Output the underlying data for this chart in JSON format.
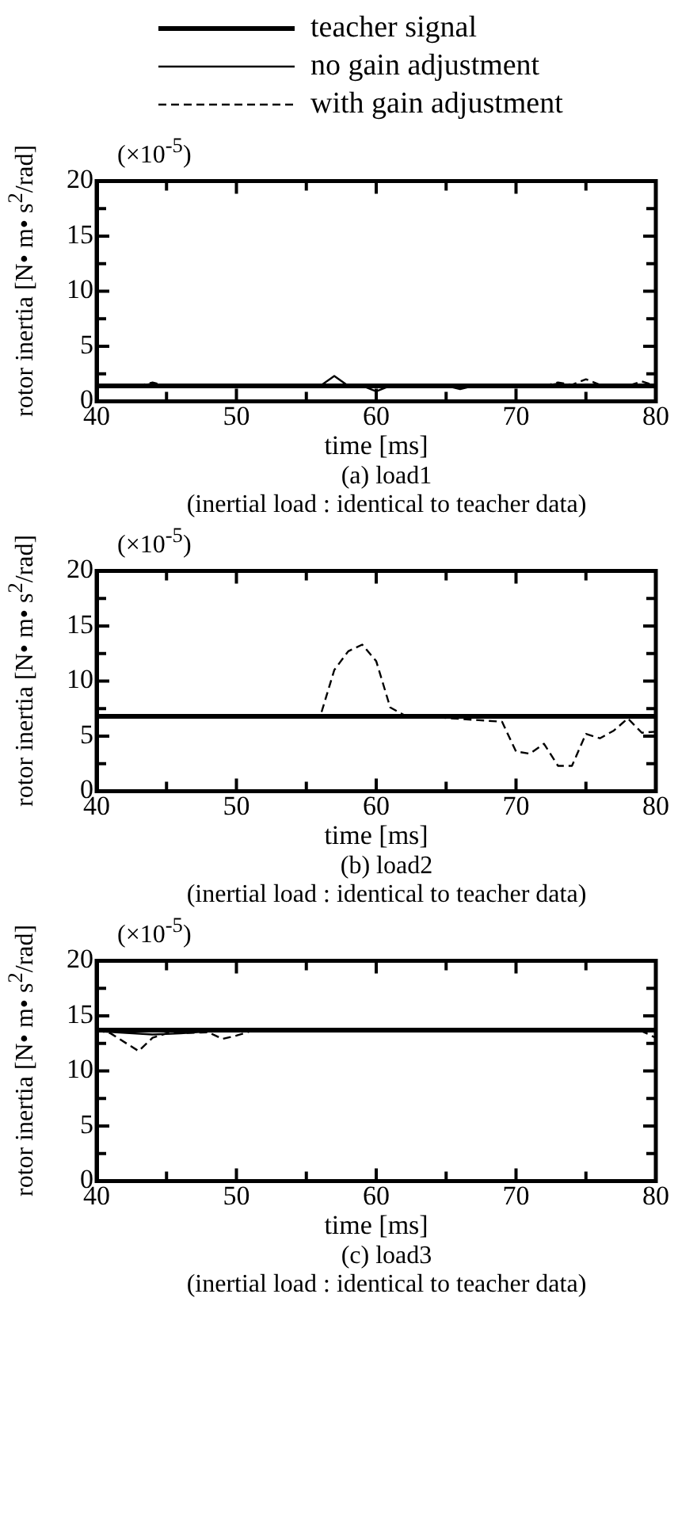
{
  "chart_data": [
    {
      "type": "line",
      "title": "(a)  load1",
      "subtitle": "(inertial load : identical to teacher data)",
      "xlabel": "time [ms]",
      "ylabel": "rotor inertia [N• m• s$^{2}$/rad]",
      "annotations": [
        "(×10$^{-5}$)"
      ],
      "legend": "top",
      "grid": false,
      "marker": "none",
      "xlim": [
        40,
        80
      ],
      "xticks": [
        40,
        {
          "value": 45,
          "label": null
        },
        50,
        {
          "value": 55,
          "label": null
        },
        60,
        {
          "value": 65,
          "label": null
        },
        70,
        {
          "value": 75,
          "label": null
        },
        80
      ],
      "ylim": [
        0,
        20
      ],
      "yticks": [
        0,
        {
          "value": 2.5,
          "label": null
        },
        5,
        {
          "value": 7.5,
          "label": null
        },
        10,
        {
          "value": 12.5,
          "label": null
        },
        15,
        {
          "value": 17.5,
          "label": null
        },
        20
      ],
      "series": [
        {
          "name": "teacher signal",
          "color": "#000000",
          "line_style": "solid",
          "x": [
            40,
            80
          ],
          "values": [
            1.4,
            1.4
          ]
        },
        {
          "name": "no gain adjustment",
          "color": "#000000",
          "line_style": "solid",
          "x": [
            40,
            43,
            44,
            45,
            56,
            57,
            58,
            59,
            60,
            61,
            65,
            66,
            67,
            72,
            73,
            74,
            80
          ],
          "values": [
            1.4,
            1.4,
            1.6,
            1.4,
            1.4,
            2.3,
            1.4,
            1.4,
            0.9,
            1.4,
            1.4,
            1.1,
            1.4,
            1.4,
            1.6,
            1.4,
            1.4
          ]
        },
        {
          "name": "with gain adjustment",
          "color": "#000000",
          "line_style": "dashed",
          "x": [
            42,
            43,
            44,
            45,
            46,
            72,
            73,
            74,
            75,
            76,
            77,
            78,
            79,
            80
          ],
          "values": [
            1.4,
            1.4,
            1.7,
            1.4,
            null,
            1.4,
            1.7,
            1.5,
            2,
            1.5,
            1.4,
            1.4,
            1.8,
            1.4
          ]
        }
      ]
    },
    {
      "type": "line",
      "title": "(b)  load2",
      "subtitle": "(inertial load : identical to teacher data)",
      "xlabel": "time [ms]",
      "ylabel": "rotor inertia [N• m• s$^{2}$/rad]",
      "annotations": [
        "(×10$^{-5}$)"
      ],
      "grid": false,
      "marker": "none",
      "xlim": [
        40,
        80
      ],
      "xticks": [
        40,
        {
          "value": 45,
          "label": null
        },
        50,
        {
          "value": 55,
          "label": null
        },
        60,
        {
          "value": 65,
          "label": null
        },
        70,
        {
          "value": 75,
          "label": null
        },
        80
      ],
      "ylim": [
        0,
        20
      ],
      "yticks": [
        0,
        {
          "value": 2.5,
          "label": null
        },
        5,
        {
          "value": 7.5,
          "label": null
        },
        10,
        {
          "value": 12.5,
          "label": null
        },
        15,
        {
          "value": 17.5,
          "label": null
        },
        20
      ],
      "series": [
        {
          "color": "#000000",
          "line_style": "solid",
          "x": [
            40,
            80
          ],
          "values": [
            6.8,
            6.8
          ]
        },
        {
          "color": "#000000",
          "line_style": "dashed",
          "x": [
            40,
            56,
            57,
            58,
            59,
            60,
            61,
            62,
            69,
            70,
            71,
            72,
            73,
            74,
            75,
            76,
            77,
            78,
            79,
            80
          ],
          "values": [
            6.8,
            6.8,
            11,
            12.7,
            13.3,
            11.8,
            7.6,
            6.9,
            6.3,
            3.6,
            3.4,
            4.3,
            2.3,
            2.3,
            5.2,
            4.8,
            5.5,
            6.6,
            5.3,
            5.4
          ]
        }
      ]
    },
    {
      "type": "line",
      "title": "(c)  load3",
      "subtitle": "(inertial load : identical to teacher data)",
      "xlabel": "time [ms]",
      "ylabel": "rotor inertia [N• m• s$^{2}$/rad]",
      "annotations": [
        "(×10$^{-5}$)"
      ],
      "grid": false,
      "marker": "none",
      "xlim": [
        40,
        80
      ],
      "xticks": [
        40,
        {
          "value": 45,
          "label": null
        },
        50,
        {
          "value": 55,
          "label": null
        },
        60,
        {
          "value": 65,
          "label": null
        },
        70,
        {
          "value": 75,
          "label": null
        },
        80
      ],
      "ylim": [
        0,
        20
      ],
      "yticks": [
        0,
        {
          "value": 2.5,
          "label": null
        },
        5,
        {
          "value": 7.5,
          "label": null
        },
        10,
        {
          "value": 12.5,
          "label": null
        },
        15,
        {
          "value": 17.5,
          "label": null
        },
        20
      ],
      "series": [
        {
          "color": "#000000",
          "line_style": "solid",
          "x": [
            40,
            80
          ],
          "values": [
            13.7,
            13.7
          ]
        },
        {
          "color": "#000000",
          "line_style": "solid",
          "x": [
            40,
            44,
            46,
            48,
            80
          ],
          "values": [
            13.6,
            13.3,
            13.4,
            13.6,
            13.6
          ]
        },
        {
          "color": "#000000",
          "line_style": "dashed",
          "x": [
            40,
            41,
            43,
            44,
            45,
            48,
            49,
            50,
            51,
            79,
            80
          ],
          "values": [
            13.7,
            13.4,
            11.8,
            13,
            13.4,
            13.5,
            12.9,
            13.2,
            13.6,
            13.6,
            13
          ]
        }
      ]
    }
  ]
}
